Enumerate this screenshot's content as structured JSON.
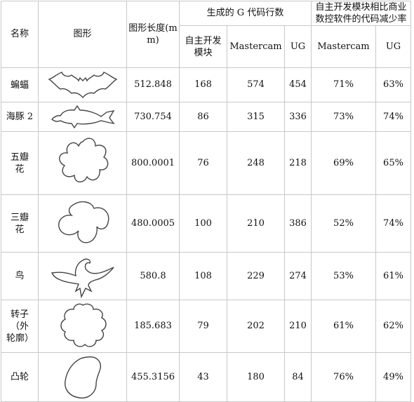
{
  "headers": {
    "name": "名称",
    "shape": "图形",
    "length": "图形长度(mm)",
    "gcode_group": "生成的 G 代码行数",
    "reduction_group": "自主开发模块相比商业数控软件的代码减少率",
    "self_dev": "自主开发模块",
    "mastercam": "Mastercam",
    "ug": "UG",
    "mastercam2": "Mastercam",
    "ug2": "UG"
  },
  "rows": [
    {
      "name": "蝙蝠",
      "shape_icon": "bat-outline-icon",
      "length": "512.848",
      "self": "168",
      "mastercam": "574",
      "ug": "454",
      "red_mastercam": "71%",
      "red_ug": "63%"
    },
    {
      "name": "海豚 2",
      "shape_icon": "dolphin-outline-icon",
      "length": "730.754",
      "self": "86",
      "mastercam": "315",
      "ug": "336",
      "red_mastercam": "73%",
      "red_ug": "74%"
    },
    {
      "name": "五瓣花",
      "shape_icon": "five-petal-flower-icon",
      "length": "800.0001",
      "self": "76",
      "mastercam": "248",
      "ug": "218",
      "red_mastercam": "69%",
      "red_ug": "65%"
    },
    {
      "name": "三瓣花",
      "shape_icon": "three-petal-flower-icon",
      "length": "480.0005",
      "self": "100",
      "mastercam": "210",
      "ug": "386",
      "red_mastercam": "52%",
      "red_ug": "74%"
    },
    {
      "name": "鸟",
      "shape_icon": "bird-outline-icon",
      "length": "580.8",
      "self": "108",
      "mastercam": "229",
      "ug": "274",
      "red_mastercam": "53%",
      "red_ug": "61%"
    },
    {
      "name": "转子（外轮廓）",
      "shape_icon": "rotor-outline-icon",
      "length": "185.683",
      "self": "79",
      "mastercam": "202",
      "ug": "210",
      "red_mastercam": "61%",
      "red_ug": "62%"
    },
    {
      "name": "凸轮",
      "shape_icon": "cam-outline-icon",
      "length": "455.3156",
      "self": "43",
      "mastercam": "180",
      "ug": "84",
      "red_mastercam": "76%",
      "red_ug": "49%"
    }
  ]
}
